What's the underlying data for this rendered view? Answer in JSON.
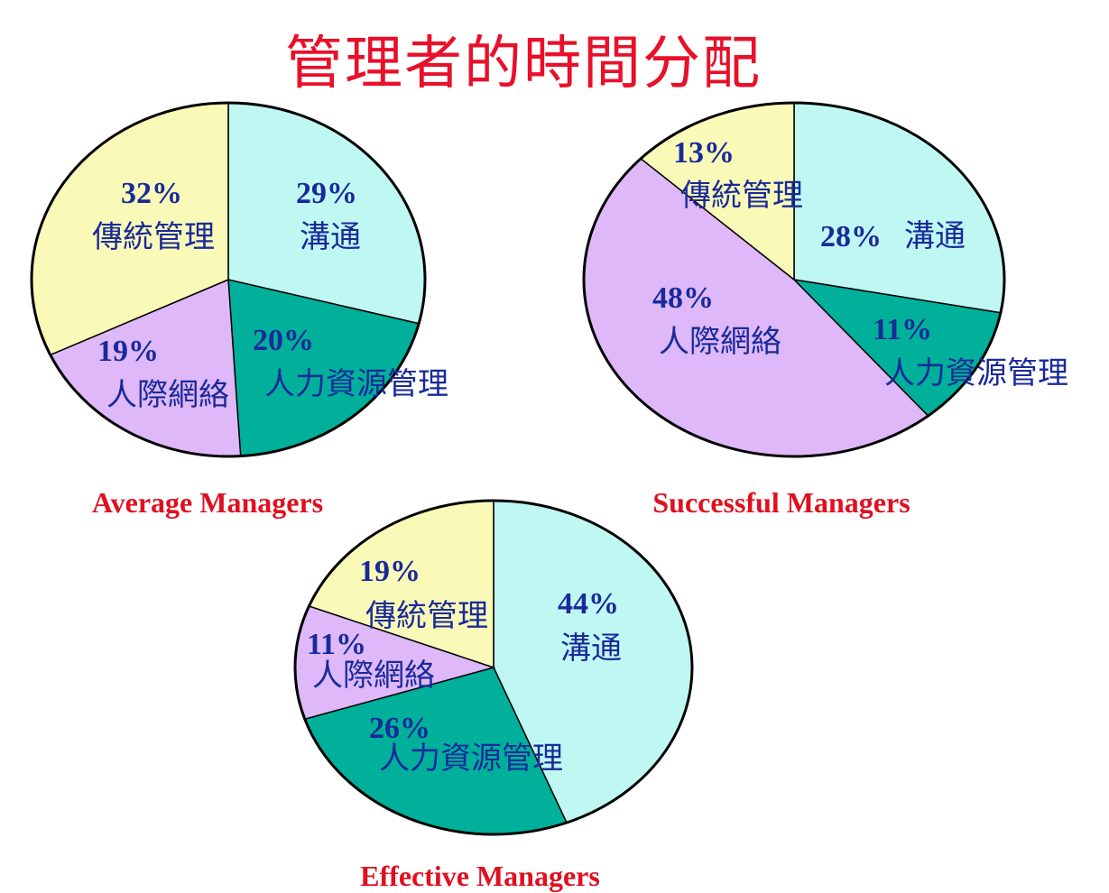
{
  "page": {
    "title": "管理者的時間分配"
  },
  "colors": {
    "title": "#e8102a",
    "caption": "#e01020",
    "label": "#1a2a9a",
    "slices": {
      "溝通": "#bff8f2",
      "人力資源管理": "#00b09a",
      "人際網絡": "#deb8f8",
      "傳統管理": "#fafab8"
    }
  },
  "chart_data": [
    {
      "type": "pie",
      "title": "Average Managers",
      "slices": [
        {
          "label": "溝通",
          "value": 29,
          "value_label": "29%"
        },
        {
          "label": "人力資源管理",
          "value": 20,
          "value_label": "20%"
        },
        {
          "label": "人際網絡",
          "value": 19,
          "value_label": "19%"
        },
        {
          "label": "傳統管理",
          "value": 32,
          "value_label": "32%"
        }
      ]
    },
    {
      "type": "pie",
      "title": "Successful Managers",
      "slices": [
        {
          "label": "溝通",
          "value": 28,
          "value_label": "28%"
        },
        {
          "label": "人力資源管理",
          "value": 11,
          "value_label": "11%"
        },
        {
          "label": "人際網絡",
          "value": 48,
          "value_label": "48%"
        },
        {
          "label": "傳統管理",
          "value": 13,
          "value_label": "13%"
        }
      ]
    },
    {
      "type": "pie",
      "title": "Effective Managers",
      "slices": [
        {
          "label": "溝通",
          "value": 44,
          "value_label": "44%"
        },
        {
          "label": "人力資源管理",
          "value": 26,
          "value_label": "26%"
        },
        {
          "label": "人際網絡",
          "value": 11,
          "value_label": "11%"
        },
        {
          "label": "傳統管理",
          "value": 19,
          "value_label": "19%"
        }
      ]
    }
  ]
}
